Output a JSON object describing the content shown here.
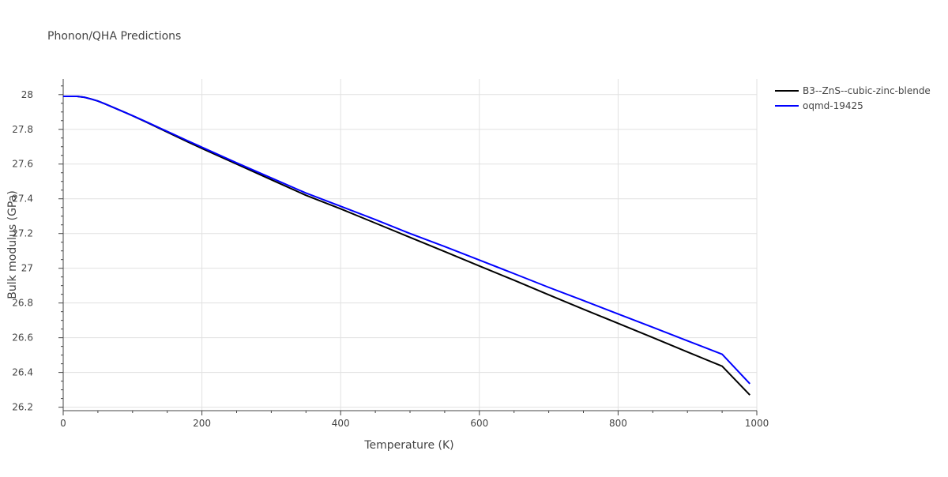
{
  "chart_data": {
    "type": "line",
    "title": "Phonon/QHA Predictions",
    "xlabel": "Temperature (K)",
    "ylabel": "Bulk modulus (GPa)",
    "xlim": [
      0,
      1000
    ],
    "ylim": [
      26.18,
      28.09
    ],
    "xticks": [
      0,
      200,
      400,
      600,
      800,
      1000
    ],
    "xtick_labels": [
      "0",
      "200",
      "400",
      "600",
      "800",
      "1000"
    ],
    "yticks": [
      26.2,
      26.4,
      26.6,
      26.8,
      27.0,
      27.2,
      27.4,
      27.6,
      27.8,
      28.0
    ],
    "ytick_labels": [
      "26.2",
      "26.4",
      "26.6",
      "26.8",
      "27",
      "27.2",
      "27.4",
      "27.6",
      "27.8",
      "28"
    ],
    "grid": true,
    "legend_position": "top-right",
    "series": [
      {
        "name": "B3--ZnS--cubic-zinc-blende",
        "color": "#000000",
        "x": [
          0,
          10,
          20,
          30,
          40,
          50,
          60,
          70,
          80,
          90,
          100,
          120,
          140,
          160,
          180,
          200,
          250,
          300,
          350,
          400,
          450,
          500,
          550,
          600,
          650,
          700,
          750,
          800,
          850,
          900,
          950,
          990
        ],
        "y": [
          27.99,
          27.99,
          27.99,
          27.985,
          27.975,
          27.963,
          27.947,
          27.93,
          27.913,
          27.896,
          27.878,
          27.841,
          27.803,
          27.765,
          27.727,
          27.69,
          27.6,
          27.51,
          27.42,
          27.342,
          27.26,
          27.178,
          27.096,
          27.013,
          26.931,
          26.847,
          26.764,
          26.683,
          26.601,
          26.518,
          26.436,
          26.27
        ]
      },
      {
        "name": "oqmd-19425",
        "color": "#0000ff",
        "x": [
          0,
          10,
          20,
          30,
          40,
          50,
          60,
          70,
          80,
          90,
          100,
          120,
          140,
          160,
          180,
          200,
          250,
          300,
          350,
          400,
          450,
          500,
          550,
          600,
          650,
          700,
          750,
          800,
          850,
          900,
          950,
          990
        ],
        "y": [
          27.99,
          27.99,
          27.99,
          27.985,
          27.975,
          27.963,
          27.947,
          27.93,
          27.913,
          27.896,
          27.879,
          27.843,
          27.806,
          27.77,
          27.733,
          27.697,
          27.607,
          27.52,
          27.433,
          27.357,
          27.28,
          27.2,
          27.125,
          27.047,
          26.969,
          26.89,
          26.814,
          26.737,
          26.66,
          26.582,
          26.505,
          26.335
        ]
      }
    ]
  }
}
